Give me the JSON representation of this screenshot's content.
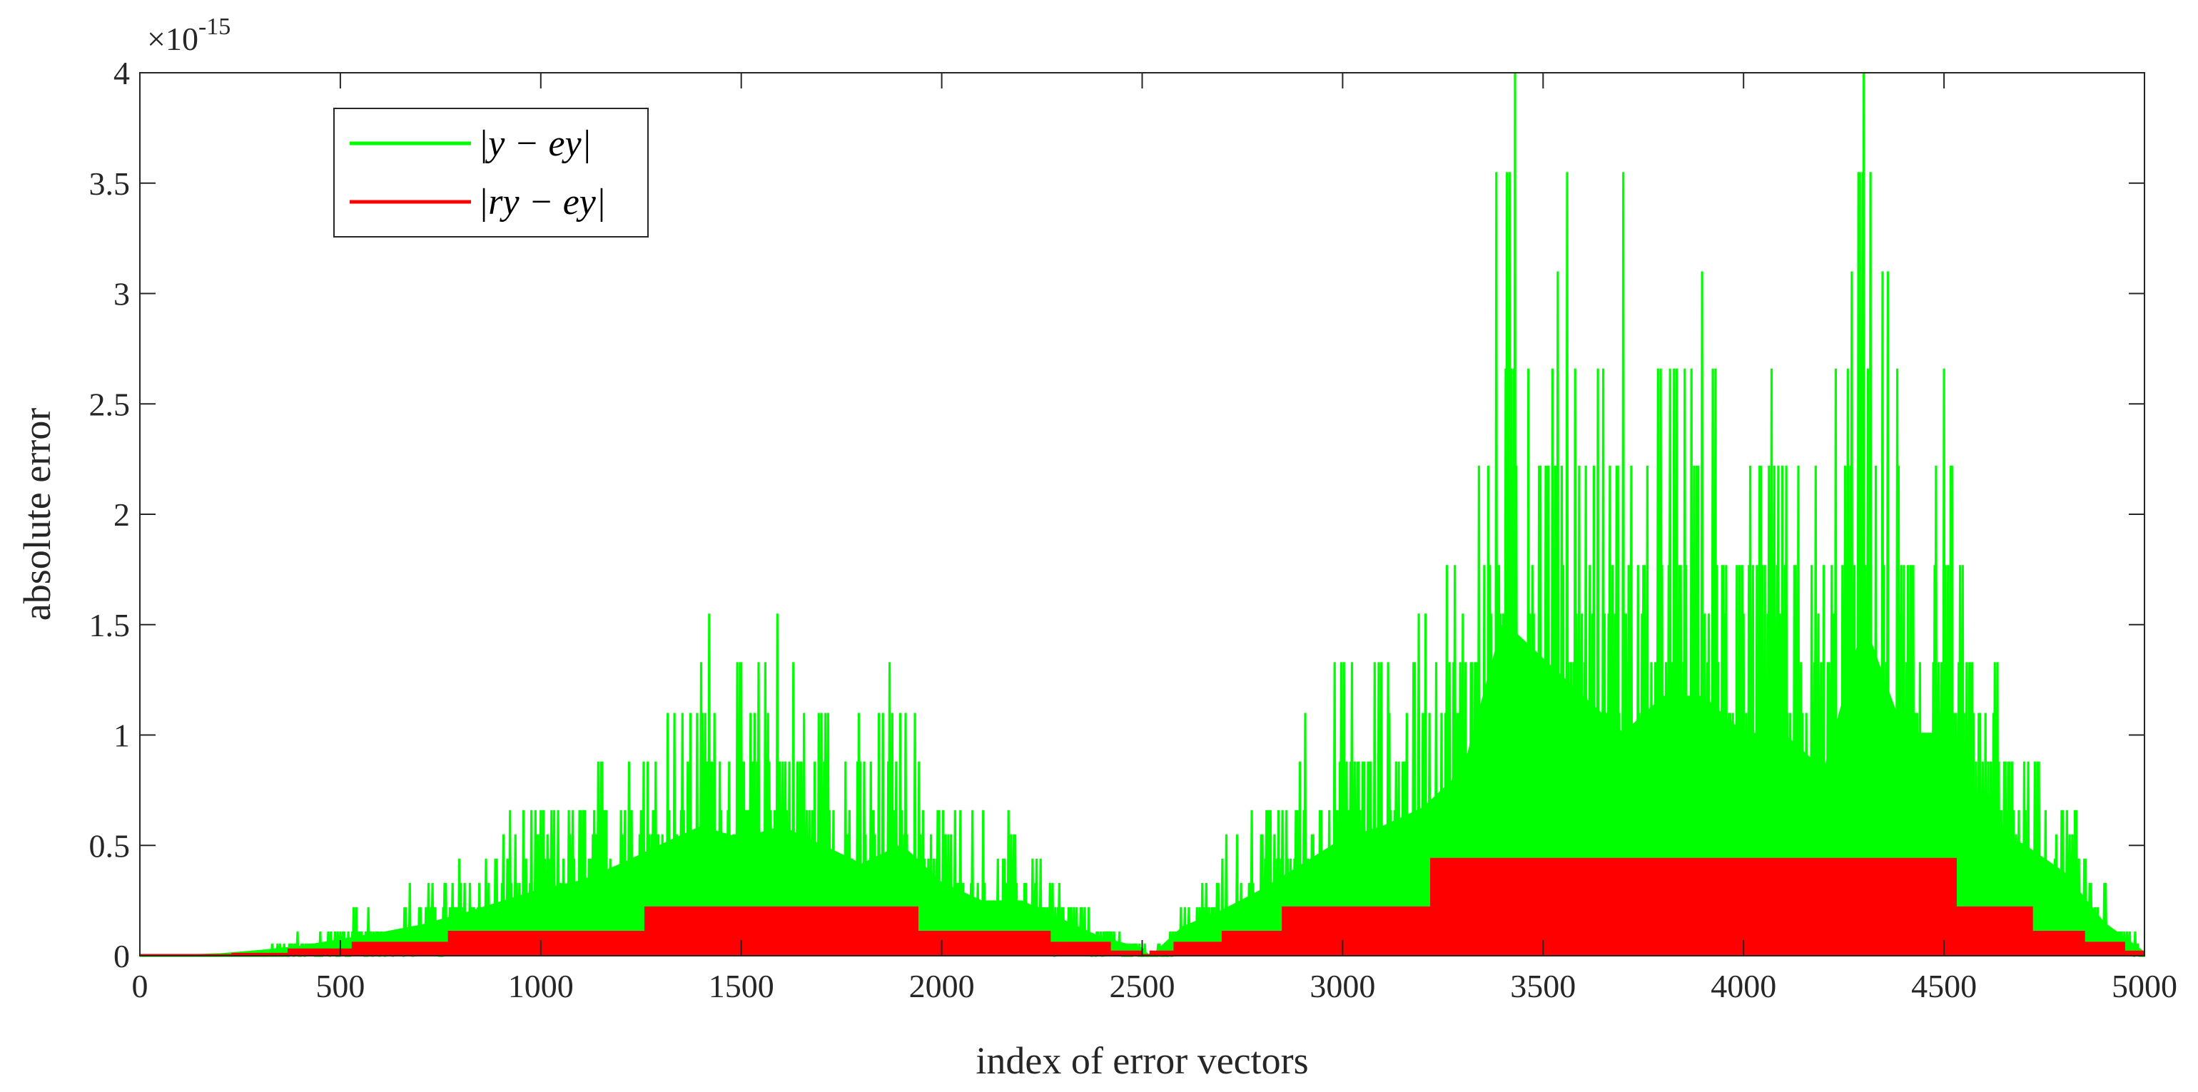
{
  "chart_data": {
    "type": "line",
    "xlabel": "index of error vectors",
    "ylabel": "absolute error",
    "xlim": [
      0,
      5000
    ],
    "ylim": [
      0,
      4e-15
    ],
    "exponent_label": "×10",
    "exponent_power": "-15",
    "x_ticks": [
      0,
      500,
      1000,
      1500,
      2000,
      2500,
      3000,
      3500,
      4000,
      4500,
      5000
    ],
    "x_tick_labels": [
      "0",
      "500",
      "1000",
      "1500",
      "2000",
      "2500",
      "3000",
      "3500",
      "4000",
      "4500",
      "5000"
    ],
    "y_ticks": [
      0,
      0.5,
      1,
      1.5,
      2,
      2.5,
      3,
      3.5,
      4
    ],
    "y_tick_labels": [
      "0",
      "0.5",
      "1",
      "1.5",
      "2",
      "2.5",
      "3",
      "3.5",
      "4"
    ],
    "legend_position": "top-left",
    "grid": false,
    "series": [
      {
        "name": "|y − ey|",
        "color": "#00ff00",
        "description": "noisy envelope, values in units of 1e-15",
        "x": [
          0,
          200,
          300,
          400,
          500,
          600,
          700,
          800,
          900,
          1000,
          1100,
          1200,
          1300,
          1400,
          1500,
          1600,
          1700,
          1800,
          1900,
          2000,
          2100,
          2200,
          2300,
          2400,
          2500,
          2520,
          2600,
          2700,
          2800,
          2900,
          3000,
          3100,
          3200,
          3300,
          3400,
          3500,
          3600,
          3700,
          3800,
          3900,
          4000,
          4100,
          4200,
          4300,
          4400,
          4500,
          4600,
          4700,
          4800,
          4900,
          5000
        ],
        "y": [
          0.0,
          0.03,
          0.07,
          0.12,
          0.2,
          0.28,
          0.37,
          0.5,
          0.65,
          0.8,
          0.9,
          1.1,
          1.33,
          1.55,
          1.4,
          1.55,
          1.33,
          1.1,
          1.33,
          0.88,
          0.66,
          0.66,
          0.44,
          0.22,
          0.1,
          0.0,
          0.35,
          0.55,
          0.8,
          1.1,
          1.4,
          1.55,
          1.77,
          2.22,
          4.0,
          3.55,
          3.1,
          2.66,
          3.1,
          3.1,
          2.66,
          2.66,
          2.22,
          4.0,
          2.66,
          2.66,
          1.55,
          1.33,
          1.0,
          0.4,
          0.05
        ],
        "peaks": [
          [
            1420,
            1.55
          ],
          [
            1590,
            1.55
          ],
          [
            1870,
            1.33
          ],
          [
            3430,
            4.0
          ],
          [
            3560,
            3.55
          ],
          [
            3700,
            3.55
          ],
          [
            4300,
            4.0
          ],
          [
            4290,
            3.55
          ]
        ]
      },
      {
        "name": "|ry − ey|",
        "color": "#ff0000",
        "description": "stepwise bounded error, values in units of 1e-15",
        "steps": [
          [
            0,
            230,
            0.0
          ],
          [
            230,
            370,
            0.01
          ],
          [
            370,
            530,
            0.03
          ],
          [
            530,
            770,
            0.06
          ],
          [
            770,
            1260,
            0.11
          ],
          [
            1260,
            1940,
            0.22
          ],
          [
            1940,
            2270,
            0.11
          ],
          [
            2270,
            2420,
            0.06
          ],
          [
            2420,
            2500,
            0.02
          ],
          [
            2500,
            2520,
            0.0
          ],
          [
            2520,
            2580,
            0.02
          ],
          [
            2580,
            2700,
            0.06
          ],
          [
            2700,
            2850,
            0.11
          ],
          [
            2850,
            3220,
            0.22
          ],
          [
            3220,
            4530,
            0.44
          ],
          [
            4530,
            4720,
            0.22
          ],
          [
            4720,
            4850,
            0.11
          ],
          [
            4850,
            4950,
            0.06
          ],
          [
            4950,
            5000,
            0.02
          ]
        ]
      }
    ]
  }
}
